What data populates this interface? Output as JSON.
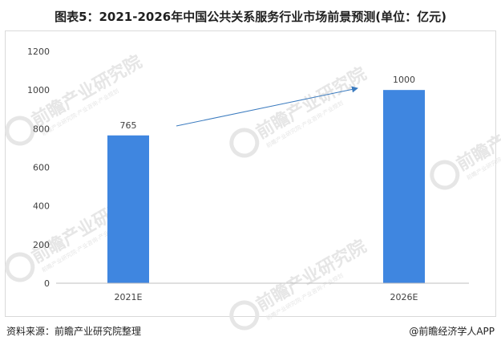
{
  "title": "图表5：2021-2026年中国公共关系服务行业市场前景预测(单位：亿元)",
  "footer": {
    "source": "资料来源：前瞻产业研究院整理",
    "brand": "@前瞻经济学人APP"
  },
  "watermark": {
    "text": "前瞻产业研究院",
    "subtext": "前瞻产业研究院·产业咨询·产业规划",
    "color": "#e6e6e6"
  },
  "colors": {
    "bar": "#3f86e0",
    "axis": "#bfbfbf",
    "arrow": "#3b7bbf",
    "label": "#404040"
  },
  "chart_data": {
    "type": "bar",
    "categories": [
      "2021E",
      "2026E"
    ],
    "series": [
      {
        "values": [
          765,
          1000
        ]
      }
    ],
    "data_labels": [
      "765",
      "1000"
    ],
    "ylim": [
      0,
      1200
    ],
    "yticks": [
      0,
      200,
      400,
      600,
      800,
      1000,
      1200
    ],
    "grid": false,
    "legend": "none",
    "annotation": "arrow from 2021E bar to 2026E bar indicating growth"
  }
}
